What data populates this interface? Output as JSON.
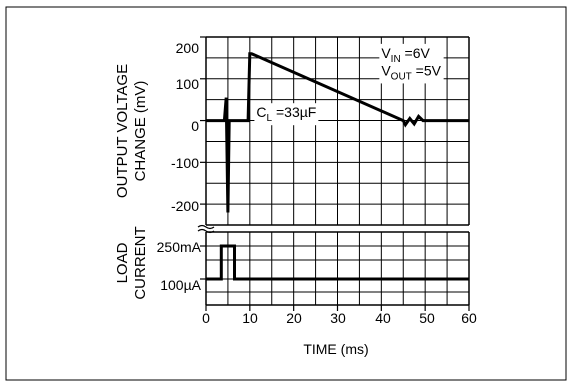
{
  "chart_data": [
    {
      "type": "line",
      "panel": "output-voltage-change",
      "ylabel_lines": [
        "OUTPUT VOLTAGE",
        "CHANGE (mV)"
      ],
      "x_unit": "ms",
      "xlim": [
        0,
        60
      ],
      "ylim": [
        -250,
        200
      ],
      "grid": true,
      "yticks": [
        200,
        100,
        0,
        -100,
        -200
      ],
      "ytick_labels": [
        "200",
        "100",
        "0",
        "-100",
        "-200"
      ],
      "series": [
        {
          "x": [
            0,
            4.2,
            4.6,
            5.0,
            5.3,
            5.6,
            9.6,
            10,
            10.4,
            45.0,
            45.5,
            46.5,
            47.5,
            48.5,
            49.5,
            50,
            60
          ],
          "y": [
            0,
            0,
            55,
            -220,
            0,
            0,
            0,
            160,
            160,
            0,
            -10,
            5,
            -8,
            10,
            0,
            0,
            0
          ]
        }
      ],
      "annotations": {
        "cl": {
          "base": "C",
          "sub": "L",
          "rest": " =33µF",
          "x": 11.5,
          "y": 20
        },
        "vin": {
          "base": "V",
          "sub": "IN",
          "rest": " =6V",
          "x": 40,
          "y": 162
        },
        "vout": {
          "base": "V",
          "sub": "OUT",
          "rest": " =5V",
          "x": 40,
          "y": 120
        }
      }
    },
    {
      "type": "line",
      "panel": "load-current",
      "ylabel_lines": [
        "LOAD",
        "CURRENT"
      ],
      "xlabel": "TIME (ms)",
      "xlim": [
        0,
        60
      ],
      "grid": true,
      "yticks": [
        "250mA",
        "100µA"
      ],
      "xticks": [
        0,
        10,
        20,
        30,
        40,
        50,
        60
      ],
      "xtick_labels": [
        "0",
        "10",
        "20",
        "30",
        "40",
        "50",
        "60"
      ],
      "series": [
        {
          "x": [
            0,
            3.5,
            3.5,
            6.5,
            6.5,
            60
          ],
          "y": [
            "100µA",
            "100µA",
            "250mA",
            "250mA",
            "100µA",
            "100µA"
          ]
        }
      ]
    }
  ]
}
